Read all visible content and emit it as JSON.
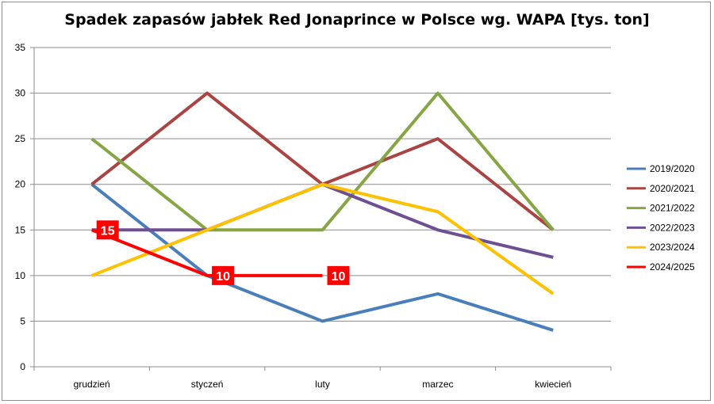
{
  "chart_data": {
    "type": "line",
    "title": "Spadek zapasów jabłek Red Jonaprince w Polsce wg. WAPA [tys. ton]",
    "xlabel": "",
    "ylabel": "",
    "categories": [
      "grudzień",
      "styczeń",
      "luty",
      "marzec",
      "kwiecień"
    ],
    "ylim": [
      0,
      35
    ],
    "yticks": [
      0,
      5,
      10,
      15,
      20,
      25,
      30,
      35
    ],
    "grid": true,
    "legend_position": "right",
    "series": [
      {
        "name": "2019/2020",
        "color": "#4a7ebb",
        "values": [
          20,
          10,
          5,
          8,
          4
        ]
      },
      {
        "name": "2020/2021",
        "color": "#a94442",
        "values": [
          20,
          30,
          20,
          25,
          15
        ]
      },
      {
        "name": "2021/2022",
        "color": "#86a544",
        "values": [
          25,
          15,
          15,
          30,
          15
        ]
      },
      {
        "name": "2022/2023",
        "color": "#6e4f94",
        "values": [
          15,
          15,
          20,
          15,
          12
        ]
      },
      {
        "name": "2023/2024",
        "color": "#ffc000",
        "values": [
          10,
          15,
          20,
          17,
          8
        ]
      },
      {
        "name": "2024/2025",
        "color": "#ff0000",
        "values": [
          15,
          10,
          10,
          null,
          null
        ],
        "data_labels": [
          "15",
          "10",
          "10",
          null,
          null
        ]
      }
    ]
  }
}
